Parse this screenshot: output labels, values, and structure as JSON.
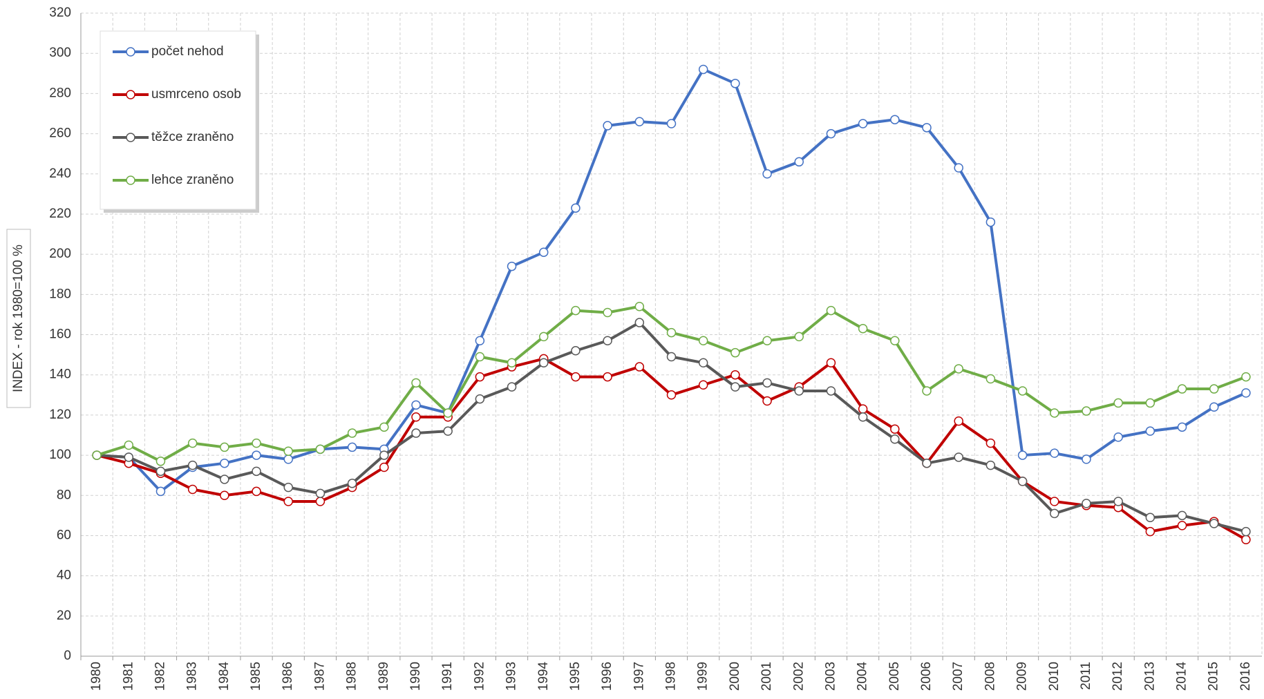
{
  "chart_data": {
    "type": "line",
    "y_label": "INDEX - rok 1980=100 %",
    "categories": [
      "1980",
      "1981",
      "1982",
      "1983",
      "1984",
      "1985",
      "1986",
      "1987",
      "1988",
      "1989",
      "1990",
      "1991",
      "1992",
      "1993",
      "1994",
      "1995",
      "1996",
      "1997",
      "1998",
      "1999",
      "2000",
      "2001",
      "2002",
      "2003",
      "2004",
      "2005",
      "2006",
      "2007",
      "2008",
      "2009",
      "2010",
      "2011",
      "2012",
      "2013",
      "2014",
      "2015",
      "2016"
    ],
    "series": [
      {
        "name": "počet nehod",
        "color": "#4472c4",
        "values": [
          100,
          99,
          82,
          94,
          96,
          100,
          98,
          103,
          104,
          103,
          125,
          121,
          157,
          194,
          201,
          223,
          264,
          266,
          265,
          292,
          285,
          240,
          246,
          260,
          265,
          267,
          263,
          243,
          216,
          100,
          101,
          98,
          109,
          112,
          114,
          124,
          131
        ]
      },
      {
        "name": "usmrceno osob",
        "color": "#c00000",
        "values": [
          100,
          96,
          91,
          83,
          80,
          82,
          77,
          77,
          84,
          94,
          119,
          119,
          139,
          144,
          148,
          139,
          139,
          144,
          130,
          135,
          140,
          127,
          134,
          146,
          123,
          113,
          96,
          117,
          106,
          87,
          77,
          75,
          74,
          62,
          65,
          67,
          58
        ]
      },
      {
        "name": "těžce zraněno",
        "color": "#595959",
        "values": [
          100,
          99,
          92,
          95,
          88,
          92,
          84,
          81,
          86,
          100,
          111,
          112,
          128,
          134,
          146,
          152,
          157,
          166,
          149,
          146,
          134,
          136,
          132,
          132,
          119,
          108,
          96,
          99,
          95,
          87,
          71,
          76,
          77,
          69,
          70,
          66,
          62
        ]
      },
      {
        "name": "lehce zraněno",
        "color": "#70ad47",
        "values": [
          100,
          105,
          97,
          106,
          104,
          106,
          102,
          103,
          111,
          114,
          136,
          121,
          149,
          146,
          159,
          172,
          171,
          174,
          161,
          157,
          151,
          157,
          159,
          172,
          163,
          157,
          132,
          143,
          138,
          132,
          121,
          122,
          126,
          126,
          133,
          133,
          139
        ]
      }
    ],
    "ylim": [
      0,
      320
    ],
    "yticks": [
      0,
      20,
      40,
      60,
      80,
      100,
      120,
      140,
      160,
      180,
      200,
      220,
      240,
      260,
      280,
      300,
      320
    ],
    "grid": true,
    "legend": "top-left"
  }
}
